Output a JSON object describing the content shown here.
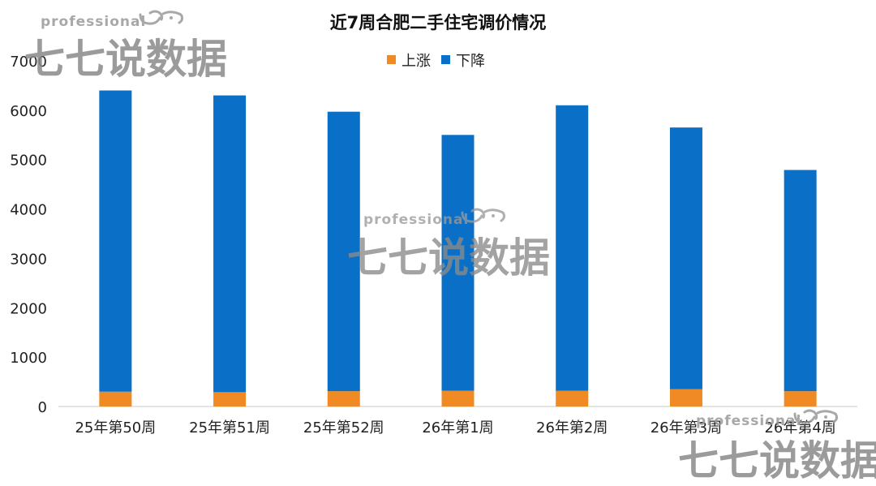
{
  "watermarks": [
    {
      "latin": "professional",
      "cjk": "七七说数据"
    },
    {
      "latin": "professional",
      "cjk": "七七说数据"
    },
    {
      "latin": "professional",
      "cjk": "七七说数据"
    }
  ],
  "colors": {
    "up": "#f08a24",
    "down": "#0a6fc6",
    "axis": "#c8c8c8"
  },
  "chart_data": {
    "type": "bar",
    "stacked": true,
    "title": "近7周合肥二手住宅调价情况",
    "legend_position": "top",
    "grid": false,
    "categories": [
      "25年第50周",
      "25年第51周",
      "25年第52周",
      "26年第1周",
      "26年第2周",
      "26年第3周",
      "26年第4周"
    ],
    "series": [
      {
        "name": "上涨",
        "color": "#f08a24",
        "values": [
          300,
          290,
          310,
          320,
          320,
          350,
          310
        ]
      },
      {
        "name": "下降",
        "color": "#0a6fc6",
        "values": [
          6100,
          6010,
          5660,
          5180,
          5780,
          5300,
          4480
        ]
      }
    ],
    "ylim": [
      0,
      7000
    ],
    "yticks": [
      "0",
      "1000",
      "2000",
      "3000",
      "4000",
      "5000",
      "6000",
      "7000"
    ]
  }
}
